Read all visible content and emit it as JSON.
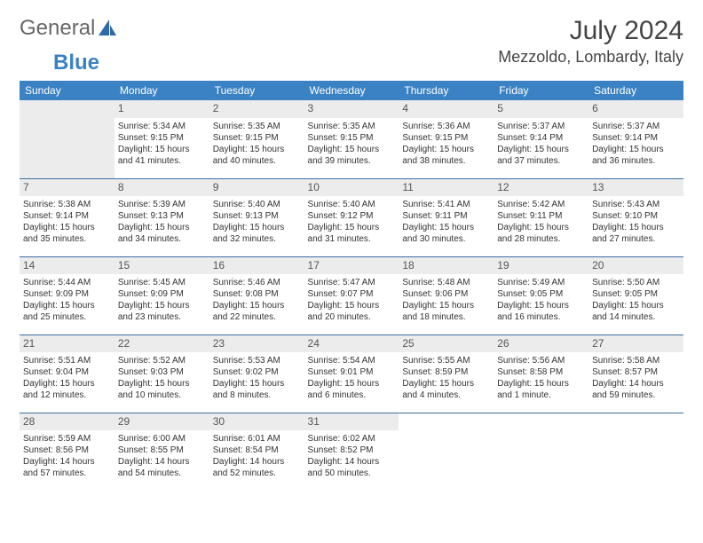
{
  "logo": {
    "text1": "General",
    "text2": "Blue"
  },
  "title": "July 2024",
  "location": "Mezzoldo, Lombardy, Italy",
  "colors": {
    "header_bg": "#3b82c4",
    "header_text": "#ffffff",
    "border": "#3b6fa0",
    "daynum_bg": "#ececec",
    "text": "#333333"
  },
  "day_headers": [
    "Sunday",
    "Monday",
    "Tuesday",
    "Wednesday",
    "Thursday",
    "Friday",
    "Saturday"
  ],
  "weeks": [
    [
      null,
      {
        "n": "1",
        "sr": "Sunrise: 5:34 AM",
        "ss": "Sunset: 9:15 PM",
        "d1": "Daylight: 15 hours",
        "d2": "and 41 minutes."
      },
      {
        "n": "2",
        "sr": "Sunrise: 5:35 AM",
        "ss": "Sunset: 9:15 PM",
        "d1": "Daylight: 15 hours",
        "d2": "and 40 minutes."
      },
      {
        "n": "3",
        "sr": "Sunrise: 5:35 AM",
        "ss": "Sunset: 9:15 PM",
        "d1": "Daylight: 15 hours",
        "d2": "and 39 minutes."
      },
      {
        "n": "4",
        "sr": "Sunrise: 5:36 AM",
        "ss": "Sunset: 9:15 PM",
        "d1": "Daylight: 15 hours",
        "d2": "and 38 minutes."
      },
      {
        "n": "5",
        "sr": "Sunrise: 5:37 AM",
        "ss": "Sunset: 9:14 PM",
        "d1": "Daylight: 15 hours",
        "d2": "and 37 minutes."
      },
      {
        "n": "6",
        "sr": "Sunrise: 5:37 AM",
        "ss": "Sunset: 9:14 PM",
        "d1": "Daylight: 15 hours",
        "d2": "and 36 minutes."
      }
    ],
    [
      {
        "n": "7",
        "sr": "Sunrise: 5:38 AM",
        "ss": "Sunset: 9:14 PM",
        "d1": "Daylight: 15 hours",
        "d2": "and 35 minutes."
      },
      {
        "n": "8",
        "sr": "Sunrise: 5:39 AM",
        "ss": "Sunset: 9:13 PM",
        "d1": "Daylight: 15 hours",
        "d2": "and 34 minutes."
      },
      {
        "n": "9",
        "sr": "Sunrise: 5:40 AM",
        "ss": "Sunset: 9:13 PM",
        "d1": "Daylight: 15 hours",
        "d2": "and 32 minutes."
      },
      {
        "n": "10",
        "sr": "Sunrise: 5:40 AM",
        "ss": "Sunset: 9:12 PM",
        "d1": "Daylight: 15 hours",
        "d2": "and 31 minutes."
      },
      {
        "n": "11",
        "sr": "Sunrise: 5:41 AM",
        "ss": "Sunset: 9:11 PM",
        "d1": "Daylight: 15 hours",
        "d2": "and 30 minutes."
      },
      {
        "n": "12",
        "sr": "Sunrise: 5:42 AM",
        "ss": "Sunset: 9:11 PM",
        "d1": "Daylight: 15 hours",
        "d2": "and 28 minutes."
      },
      {
        "n": "13",
        "sr": "Sunrise: 5:43 AM",
        "ss": "Sunset: 9:10 PM",
        "d1": "Daylight: 15 hours",
        "d2": "and 27 minutes."
      }
    ],
    [
      {
        "n": "14",
        "sr": "Sunrise: 5:44 AM",
        "ss": "Sunset: 9:09 PM",
        "d1": "Daylight: 15 hours",
        "d2": "and 25 minutes."
      },
      {
        "n": "15",
        "sr": "Sunrise: 5:45 AM",
        "ss": "Sunset: 9:09 PM",
        "d1": "Daylight: 15 hours",
        "d2": "and 23 minutes."
      },
      {
        "n": "16",
        "sr": "Sunrise: 5:46 AM",
        "ss": "Sunset: 9:08 PM",
        "d1": "Daylight: 15 hours",
        "d2": "and 22 minutes."
      },
      {
        "n": "17",
        "sr": "Sunrise: 5:47 AM",
        "ss": "Sunset: 9:07 PM",
        "d1": "Daylight: 15 hours",
        "d2": "and 20 minutes."
      },
      {
        "n": "18",
        "sr": "Sunrise: 5:48 AM",
        "ss": "Sunset: 9:06 PM",
        "d1": "Daylight: 15 hours",
        "d2": "and 18 minutes."
      },
      {
        "n": "19",
        "sr": "Sunrise: 5:49 AM",
        "ss": "Sunset: 9:05 PM",
        "d1": "Daylight: 15 hours",
        "d2": "and 16 minutes."
      },
      {
        "n": "20",
        "sr": "Sunrise: 5:50 AM",
        "ss": "Sunset: 9:05 PM",
        "d1": "Daylight: 15 hours",
        "d2": "and 14 minutes."
      }
    ],
    [
      {
        "n": "21",
        "sr": "Sunrise: 5:51 AM",
        "ss": "Sunset: 9:04 PM",
        "d1": "Daylight: 15 hours",
        "d2": "and 12 minutes."
      },
      {
        "n": "22",
        "sr": "Sunrise: 5:52 AM",
        "ss": "Sunset: 9:03 PM",
        "d1": "Daylight: 15 hours",
        "d2": "and 10 minutes."
      },
      {
        "n": "23",
        "sr": "Sunrise: 5:53 AM",
        "ss": "Sunset: 9:02 PM",
        "d1": "Daylight: 15 hours",
        "d2": "and 8 minutes."
      },
      {
        "n": "24",
        "sr": "Sunrise: 5:54 AM",
        "ss": "Sunset: 9:01 PM",
        "d1": "Daylight: 15 hours",
        "d2": "and 6 minutes."
      },
      {
        "n": "25",
        "sr": "Sunrise: 5:55 AM",
        "ss": "Sunset: 8:59 PM",
        "d1": "Daylight: 15 hours",
        "d2": "and 4 minutes."
      },
      {
        "n": "26",
        "sr": "Sunrise: 5:56 AM",
        "ss": "Sunset: 8:58 PM",
        "d1": "Daylight: 15 hours",
        "d2": "and 1 minute."
      },
      {
        "n": "27",
        "sr": "Sunrise: 5:58 AM",
        "ss": "Sunset: 8:57 PM",
        "d1": "Daylight: 14 hours",
        "d2": "and 59 minutes."
      }
    ],
    [
      {
        "n": "28",
        "sr": "Sunrise: 5:59 AM",
        "ss": "Sunset: 8:56 PM",
        "d1": "Daylight: 14 hours",
        "d2": "and 57 minutes."
      },
      {
        "n": "29",
        "sr": "Sunrise: 6:00 AM",
        "ss": "Sunset: 8:55 PM",
        "d1": "Daylight: 14 hours",
        "d2": "and 54 minutes."
      },
      {
        "n": "30",
        "sr": "Sunrise: 6:01 AM",
        "ss": "Sunset: 8:54 PM",
        "d1": "Daylight: 14 hours",
        "d2": "and 52 minutes."
      },
      {
        "n": "31",
        "sr": "Sunrise: 6:02 AM",
        "ss": "Sunset: 8:52 PM",
        "d1": "Daylight: 14 hours",
        "d2": "and 50 minutes."
      },
      null,
      null,
      null
    ]
  ]
}
